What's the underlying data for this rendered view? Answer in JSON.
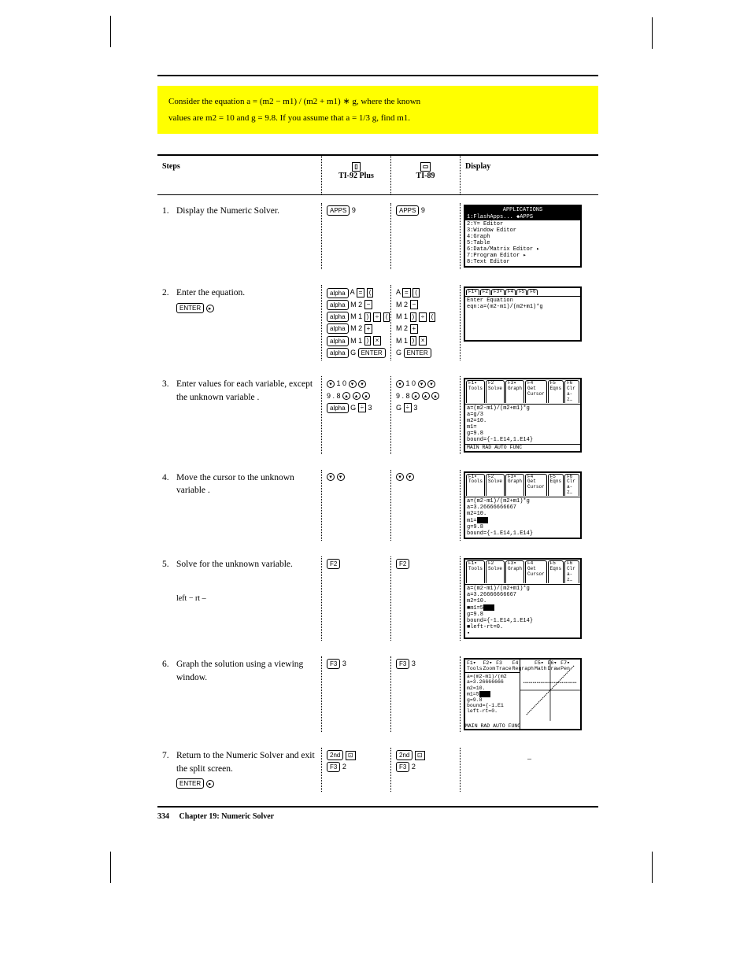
{
  "yellow": {
    "line1": "Consider the equation a = (m2 − m1) / (m2 + m1) ∗ g, where the known",
    "eq_note": "values are m2 = 10 and g = 9.8. If you assume that a = 1/3 g, find m1."
  },
  "headers": {
    "steps": "Steps",
    "ti92": "TI-92 Plus",
    "ti89": "TI-89",
    "display": "Display"
  },
  "keys": {
    "apps": "APPS",
    "alpha": "alpha",
    "enter": "ENTER",
    "second": "2nd",
    "f2": "F2",
    "f3": "F3"
  },
  "rows": [
    {
      "n": "1.",
      "text": "Display the Numeric Solver.",
      "k92_lines": [
        "<kAPPS> 9"
      ],
      "k89_lines": [
        "<kAPPS> 9"
      ],
      "screen": {
        "type": "menu",
        "title": "APPLICATIONS",
        "inv": "1:FlashApps...     ◆APPS",
        "lines": [
          "2:Y= Editor",
          "3:Window Editor",
          "4:Graph",
          "5:Table",
          "6:Data/Matrix Editor ▸",
          "7:Program Editor    ▸",
          "8:Text Editor"
        ]
      }
    },
    {
      "n": "2.",
      "text": "Enter the equation.",
      "extra": "<kENTER>  <arR>",
      "k92_lines": [
        "<kalpha> A <s=> <s(>",
        "<kalpha> M 2 <s->",
        "<kalpha> M 1 <s)> <s÷> <s(>",
        "<kalpha> M 2 <s+>",
        "<kalpha> M 1 <s)> <s×>",
        "<kalpha> G <kENTER>"
      ],
      "k89_lines": [
        "A <s=> <s(>",
        "M 2 <s->",
        "M 1 <s)> <s÷> <s(>",
        "M 2 <s+>",
        "M 1 <s)> <s×>",
        "G <kENTER>"
      ],
      "screen": {
        "type": "solver-entry",
        "tabs": [
          "F1▾",
          "F2",
          "F3▾",
          "F4",
          "F5",
          "F6"
        ],
        "lines": [
          "Enter Equation",
          "eqn:a=(m2-m1)/(m2+m1)*g"
        ]
      }
    },
    {
      "n": "3.",
      "text": "Enter values for each variable, except the unknown variable .",
      "k92_lines": [
        "<arD> 1 0 <arD> <arD>",
        "9 . 8 <arU> <arU> <arU>",
        "<kalpha> G <s÷> 3"
      ],
      "k89_lines": [
        "<arD> 1 0 <arD> <arD>",
        "9 . 8 <arU> <arU> <arU>",
        "G <s÷> 3"
      ],
      "screen": {
        "type": "solver",
        "tabs": [
          "F1▾",
          "F2",
          "F3▾",
          "F4",
          "F5",
          "F6"
        ],
        "tabtext": [
          "Tools",
          "Solve",
          "Graph",
          "Get Cursor",
          "Eqns",
          "Clr a-z…"
        ],
        "lines": [
          "a=(m2-m1)/(m2+m1)*g",
          " a=g/3",
          " m2=10.",
          " m1=",
          " g=9.8",
          " bound={-1.E14,1.E14}"
        ],
        "status": "MAIN        RAD AUTO        FUNC"
      }
    },
    {
      "n": "4.",
      "text": "Move the cursor to the unknown variable .",
      "k92_lines": [
        "<arD> <arD>"
      ],
      "k89_lines": [
        "<arD> <arD>"
      ],
      "screen": {
        "type": "solver",
        "tabs": [
          "F1▾",
          "F2",
          "F3▾",
          "F4",
          "F5",
          "F6"
        ],
        "tabtext": [
          "Tools",
          "Solve",
          "Graph",
          "Get Cursor",
          "Eqns",
          "Clr a-z…"
        ],
        "lines": [
          "a=(m2-m1)/(m2+m1)*g",
          " a=3.26666666667",
          " m2=10.",
          " m1=▮",
          " g=9.8",
          " bound={-1.E14,1.E14}"
        ]
      }
    },
    {
      "n": "5.",
      "text": "Solve for the unknown variable.",
      "subtext": "left − rt     –",
      "k92_lines": [
        "<kF2>"
      ],
      "k89_lines": [
        "<kF2>"
      ],
      "screen": {
        "type": "solver",
        "tabs": [
          "F1▾",
          "F2",
          "F3▾",
          "F4",
          "F5",
          "F6"
        ],
        "tabtext": [
          "Tools",
          "Solve",
          "Graph",
          "Get Cursor",
          "Eqns",
          "Clr a-z…"
        ],
        "lines": [
          "a=(m2-m1)/(m2+m1)*g",
          " a=3.26666666667",
          " m2=10.",
          "■m1=5▮",
          " g=9.8",
          " bound={-1.E14,1.E14}",
          "■left-rt=0.",
          " ▪"
        ]
      }
    },
    {
      "n": "6.",
      "text": "Graph the solution using a           viewing window.",
      "k92_lines": [
        "<kF3> 3"
      ],
      "k89_lines": [
        "<kF3> 3"
      ],
      "screen": {
        "type": "graph",
        "tabs": [
          "F1▾",
          "F2▾",
          "F3",
          "F4",
          "F5▾",
          "F6▾",
          "F7▾"
        ],
        "tabtext": [
          "Tools",
          "Zoom",
          "Trace",
          "Regraph",
          "Math",
          "Draw",
          "Pen"
        ],
        "left_lines": [
          "a=(m2-m1)/(m2",
          "a=3.26666666",
          "m2=10.",
          "m1=5▮",
          "g=9.8",
          "bound={-1.E1",
          "left-rt=0."
        ],
        "status": "MAIN        RAD AUTO        FUNC"
      }
    },
    {
      "n": "7.",
      "text": "Return to the Numeric Solver and exit the split screen.",
      "extra": "<kENTER>  <arR>",
      "k92_lines": [
        "<k2nd> <s⊡>",
        "<kF3> 2"
      ],
      "k89_lines": [
        "<k2nd> <s⊡>",
        "<kF3> 2"
      ],
      "subtext2": "–"
    }
  ],
  "footer": {
    "page": "334",
    "chapter": "Chapter 19:  Numeric Solver"
  }
}
